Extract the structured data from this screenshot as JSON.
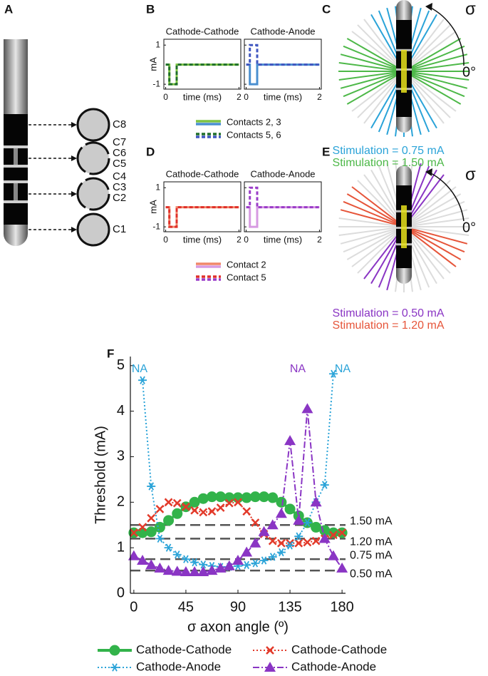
{
  "panel_labels": [
    "A",
    "B",
    "C",
    "D",
    "E",
    "F"
  ],
  "panel_a": {
    "contacts": [
      "C8",
      "C7",
      "C6",
      "C5",
      "C4",
      "C3",
      "C2",
      "C1"
    ]
  },
  "panel_c": {
    "angle_symbol": "σ",
    "zero_angle": "0°",
    "annotations": [
      {
        "text": "Stimulation = 0.75 mA",
        "color": "#2aa3d8"
      },
      {
        "text": "Stimulation = 1.50 mA",
        "color": "#4db848"
      }
    ]
  },
  "panel_e": {
    "angle_symbol": "σ",
    "zero_angle": "0°",
    "annotations": [
      {
        "text": "Stimulation = 0.50 mA",
        "color": "#8a35c4"
      },
      {
        "text": "Stimulation = 1.20 mA",
        "color": "#e6553a"
      }
    ]
  },
  "chart_data": [
    {
      "type": "line",
      "ylabel": "mA",
      "xlabel": "time (ms)",
      "subplot_titles": [
        "Cathode-Cathode",
        "Cathode-Anode"
      ],
      "x": [
        0,
        0.1,
        0.1,
        0.3,
        0.3,
        2
      ],
      "xlim": [
        -0.05,
        2.05
      ],
      "xticks": [
        0,
        2
      ],
      "ylim": [
        -1.25,
        1.3
      ],
      "yticks": [
        -1,
        1
      ],
      "series": [
        {
          "name": "Contacts 2, 3",
          "colors": [
            "#7cc242",
            "#4a8fd0"
          ],
          "linestyle": "solid",
          "values": [
            [
              0,
              0,
              -1,
              -1,
              0,
              0
            ],
            [
              0,
              0,
              -1,
              -1,
              0,
              0
            ]
          ]
        },
        {
          "name": "Contacts 5, 6",
          "colors": [
            "#1f6f2a",
            "#3f56c0"
          ],
          "linestyle": "dashed",
          "values": [
            [
              0,
              0,
              -1,
              -1,
              0,
              0
            ],
            [
              0,
              0,
              1,
              1,
              0,
              0
            ]
          ]
        }
      ]
    },
    {
      "type": "line",
      "ylabel": "mA",
      "xlabel": "time (ms)",
      "subplot_titles": [
        "Cathode-Cathode",
        "Cathode-Anode"
      ],
      "x": [
        0,
        0.1,
        0.1,
        0.3,
        0.3,
        2
      ],
      "xlim": [
        -0.05,
        2.05
      ],
      "xticks": [
        0,
        2
      ],
      "ylim": [
        -1.25,
        1.3
      ],
      "yticks": [
        -1,
        1
      ],
      "series": [
        {
          "name": "Contact 2",
          "colors": [
            "#f0876a",
            "#d79ae2"
          ],
          "linestyle": "solid",
          "values": [
            [
              0,
              0,
              -1,
              -1,
              0,
              0
            ],
            [
              0,
              0,
              -1,
              -1,
              0,
              0
            ]
          ]
        },
        {
          "name": "Contact 5",
          "colors": [
            "#e0302a",
            "#9a3cc8"
          ],
          "linestyle": "dashed",
          "values": [
            [
              0,
              0,
              -1,
              -1,
              0,
              0
            ],
            [
              0,
              0,
              1,
              1,
              0,
              0
            ]
          ]
        }
      ]
    },
    {
      "type": "line",
      "ylabel": "Threshold (mA)",
      "xlabel": "σ axon angle (º)",
      "x": [
        0,
        7.5,
        15,
        22.5,
        30,
        37.5,
        45,
        52.5,
        60,
        67.5,
        75,
        82.5,
        90,
        97.5,
        105,
        112.5,
        120,
        127.5,
        135,
        142.5,
        150,
        157.5,
        165,
        172.5,
        180
      ],
      "xlim": [
        -3,
        183
      ],
      "xticks": [
        0,
        45,
        90,
        135,
        180
      ],
      "ylim": [
        0,
        5.2
      ],
      "yticks": [
        0,
        1,
        2,
        3,
        4,
        5
      ],
      "series": [
        {
          "name": "Cathode-Cathode",
          "color": "#32b34a",
          "marker": "circle",
          "linestyle": "solid",
          "values": [
            1.33,
            1.33,
            1.35,
            1.45,
            1.6,
            1.75,
            1.9,
            2.0,
            2.08,
            2.12,
            2.12,
            2.1,
            2.1,
            2.1,
            2.12,
            2.12,
            2.1,
            2.0,
            1.85,
            1.7,
            1.55,
            1.45,
            1.38,
            1.33,
            1.33
          ]
        },
        {
          "name": "Cathode-Cathode",
          "color": "#e23a2a",
          "marker": "x",
          "linestyle": "dotted",
          "values": [
            1.33,
            1.45,
            1.65,
            1.85,
            2.0,
            1.98,
            1.9,
            1.82,
            1.78,
            1.8,
            1.88,
            1.98,
            2.0,
            1.8,
            1.55,
            1.3,
            1.15,
            1.1,
            1.1,
            1.1,
            1.12,
            1.15,
            1.2,
            1.28,
            1.33
          ]
        },
        {
          "name": "Cathode-Anode",
          "color": "#2aa3d8",
          "marker": "star",
          "linestyle": "dotted",
          "values": [
            null,
            4.68,
            2.35,
            1.2,
            1.0,
            0.85,
            0.75,
            0.68,
            0.63,
            0.6,
            0.58,
            0.58,
            0.6,
            0.62,
            0.66,
            0.72,
            0.8,
            0.9,
            1.05,
            1.25,
            1.55,
            2.0,
            2.38,
            4.82,
            null
          ]
        },
        {
          "name": "Cathode-Anode",
          "color": "#8a35c4",
          "marker": "triangle",
          "linestyle": "dashdot",
          "values": [
            0.82,
            0.72,
            0.62,
            0.55,
            0.5,
            0.48,
            0.47,
            0.47,
            0.47,
            0.5,
            0.55,
            0.6,
            0.72,
            0.9,
            1.1,
            1.35,
            1.5,
            1.75,
            3.35,
            1.6,
            4.05,
            2.0,
            1.2,
            0.82,
            0.55
          ]
        }
      ],
      "reference_lines": [
        {
          "value": 1.5,
          "label": "1.50 mA"
        },
        {
          "value": 1.2,
          "label": "1.20 mA"
        },
        {
          "value": 0.75,
          "label": "0.75 mA"
        },
        {
          "value": 0.5,
          "label": "0.50 mA"
        }
      ],
      "annotations": [
        {
          "text": "NA",
          "color": "#2aa3d8"
        },
        {
          "text": "NA",
          "color": "#8a35c4"
        },
        {
          "text": "NA",
          "color": "#2aa3d8"
        }
      ]
    }
  ]
}
